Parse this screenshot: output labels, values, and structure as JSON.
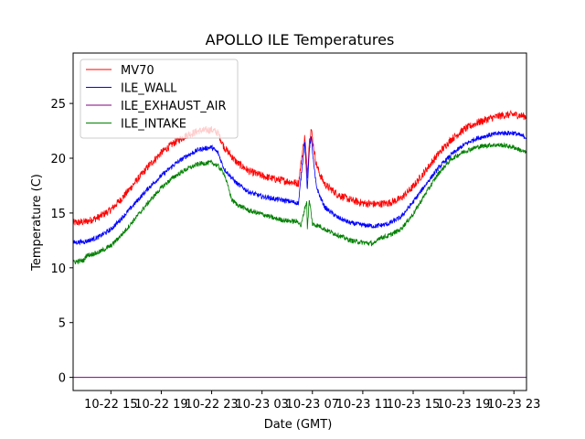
{
  "chart_data": {
    "type": "line",
    "title": "APOLLO ILE Temperatures",
    "xlabel": "Date (GMT)",
    "ylabel": "Temperature (C)",
    "xlim": [
      12.0,
      48.0
    ],
    "ylim": [
      -1.2,
      29.6
    ],
    "x_ticks": [
      {
        "value": 15,
        "label": "10-22 15"
      },
      {
        "value": 19,
        "label": "10-22 19"
      },
      {
        "value": 23,
        "label": "10-22 23"
      },
      {
        "value": 27,
        "label": "10-23 03"
      },
      {
        "value": 31,
        "label": "10-23 07"
      },
      {
        "value": 35,
        "label": "10-23 11"
      },
      {
        "value": 39,
        "label": "10-23 15"
      },
      {
        "value": 43,
        "label": "10-23 19"
      },
      {
        "value": 47,
        "label": "10-23 23"
      }
    ],
    "y_ticks": [
      {
        "value": 0,
        "label": "0"
      },
      {
        "value": 5,
        "label": "5"
      },
      {
        "value": 10,
        "label": "10"
      },
      {
        "value": 15,
        "label": "15"
      },
      {
        "value": 20,
        "label": "20"
      },
      {
        "value": 25,
        "label": "25"
      }
    ],
    "legend_position": "top-left",
    "series": [
      {
        "name": "MV70",
        "color": "#ff0000",
        "noise": 0.35,
        "x": [
          12.0,
          13.0,
          14.0,
          15.0,
          16.0,
          17.0,
          18.0,
          19.0,
          20.0,
          21.0,
          22.0,
          23.0,
          23.5,
          24.0,
          25.0,
          26.0,
          27.0,
          28.0,
          29.0,
          29.9,
          30.2,
          30.4,
          30.6,
          30.75,
          30.9,
          31.1,
          31.3,
          31.6,
          32.0,
          33.0,
          34.0,
          35.0,
          36.0,
          37.0,
          38.0,
          39.0,
          40.0,
          41.0,
          42.0,
          43.0,
          44.0,
          45.0,
          46.0,
          47.0,
          48.0
        ],
        "y": [
          14.1,
          14.2,
          14.6,
          15.3,
          16.5,
          17.9,
          19.3,
          20.5,
          21.4,
          22.1,
          22.5,
          22.6,
          22.3,
          21.0,
          19.6,
          18.8,
          18.4,
          18.1,
          17.9,
          17.7,
          20.5,
          22.0,
          18.5,
          21.5,
          22.7,
          21.0,
          19.5,
          18.5,
          17.6,
          16.7,
          16.2,
          15.9,
          15.8,
          15.9,
          16.3,
          17.4,
          18.9,
          20.4,
          21.7,
          22.6,
          23.2,
          23.6,
          23.9,
          24.0,
          23.8
        ]
      },
      {
        "name": "ILE_WALL",
        "color": "#0000ff",
        "noise": 0.22,
        "x": [
          12.0,
          13.0,
          14.0,
          15.0,
          16.0,
          17.0,
          18.0,
          19.0,
          20.0,
          21.0,
          22.0,
          23.0,
          23.5,
          24.0,
          25.0,
          26.0,
          27.0,
          28.0,
          29.0,
          29.9,
          30.2,
          30.4,
          30.6,
          30.75,
          30.9,
          31.1,
          31.3,
          31.6,
          32.0,
          33.0,
          34.0,
          35.0,
          36.0,
          37.0,
          38.0,
          39.0,
          40.0,
          41.0,
          42.0,
          43.0,
          44.0,
          45.0,
          46.0,
          47.0,
          48.0
        ],
        "y": [
          12.3,
          12.4,
          12.8,
          13.5,
          14.7,
          16.0,
          17.3,
          18.4,
          19.4,
          20.2,
          20.8,
          21.0,
          20.5,
          19.0,
          17.7,
          16.9,
          16.5,
          16.3,
          16.1,
          15.9,
          19.5,
          21.5,
          17.0,
          20.8,
          22.0,
          19.5,
          17.5,
          16.5,
          15.5,
          14.6,
          14.1,
          13.9,
          13.8,
          14.0,
          14.6,
          16.0,
          17.6,
          19.1,
          20.3,
          21.2,
          21.8,
          22.1,
          22.3,
          22.3,
          21.9
        ]
      },
      {
        "name": "ILE_EXHAUST_AIR",
        "color": "#800080",
        "noise": 0.0,
        "x": [
          12.0,
          48.0
        ],
        "y": [
          0.0,
          0.0
        ]
      },
      {
        "name": "ILE_INTAKE",
        "color": "#008000",
        "noise": 0.22,
        "x": [
          12.0,
          12.9,
          13.0,
          14.0,
          15.0,
          16.0,
          17.0,
          18.0,
          19.0,
          20.0,
          21.0,
          22.0,
          23.0,
          23.5,
          24.0,
          24.6,
          25.0,
          26.0,
          27.0,
          28.0,
          29.0,
          29.9,
          30.1,
          30.4,
          30.55,
          30.6,
          30.75,
          30.9,
          31.0,
          31.3,
          31.6,
          32.0,
          33.0,
          34.0,
          35.0,
          36.0,
          36.2,
          37.0,
          38.0,
          39.0,
          40.0,
          41.0,
          42.0,
          43.0,
          44.0,
          45.0,
          46.0,
          47.0,
          48.0
        ],
        "y": [
          10.5,
          10.7,
          11.1,
          11.4,
          12.0,
          13.2,
          14.6,
          16.0,
          17.3,
          18.3,
          19.0,
          19.5,
          19.6,
          19.3,
          18.6,
          16.2,
          15.8,
          15.2,
          14.9,
          14.5,
          14.3,
          14.2,
          13.8,
          15.5,
          16.0,
          13.6,
          16.2,
          15.0,
          14.0,
          13.9,
          13.8,
          13.5,
          13.0,
          12.5,
          12.3,
          12.2,
          12.7,
          12.9,
          13.5,
          14.9,
          16.8,
          18.6,
          19.9,
          20.6,
          21.0,
          21.2,
          21.2,
          21.0,
          20.5
        ]
      }
    ]
  }
}
